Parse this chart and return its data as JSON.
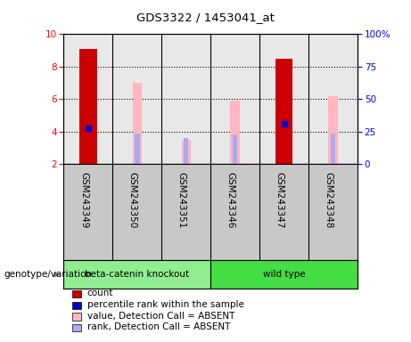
{
  "title": "GDS3322 / 1453041_at",
  "samples": [
    "GSM243349",
    "GSM243350",
    "GSM243351",
    "GSM243346",
    "GSM243347",
    "GSM243348"
  ],
  "ylim_left": [
    2,
    10
  ],
  "ylim_right": [
    0,
    100
  ],
  "yticks_left": [
    2,
    4,
    6,
    8,
    10
  ],
  "yticks_right": [
    0,
    25,
    50,
    75,
    100
  ],
  "yticklabels_right": [
    "0",
    "25",
    "50",
    "75",
    "100%"
  ],
  "red_bars": [
    9.1,
    0,
    0,
    0,
    8.5,
    0
  ],
  "blue_dots": [
    4.2,
    0,
    0,
    0,
    4.5,
    0
  ],
  "pink_bars": [
    0,
    7.0,
    3.5,
    5.9,
    0,
    6.2
  ],
  "lavender_bars": [
    0,
    3.9,
    3.6,
    3.8,
    0,
    3.9
  ],
  "red_color": "#CC0000",
  "blue_color": "#0000CC",
  "pink_color": "#FFB6C1",
  "lavender_color": "#AAAAEE",
  "bar_width": 0.35,
  "legend_items": [
    {
      "color": "#CC0000",
      "label": "count"
    },
    {
      "color": "#0000CC",
      "label": "percentile rank within the sample"
    },
    {
      "color": "#FFB6C1",
      "label": "value, Detection Call = ABSENT"
    },
    {
      "color": "#AAAAEE",
      "label": "rank, Detection Call = ABSENT"
    }
  ],
  "grid_levels": [
    4,
    6,
    8
  ],
  "plot_bg": "#E8E8E8",
  "label_area_bg": "#C8C8C8",
  "group_ko_color": "#90EE90",
  "group_wt_color": "#44DD44",
  "genotype_label": "genotype/variation"
}
